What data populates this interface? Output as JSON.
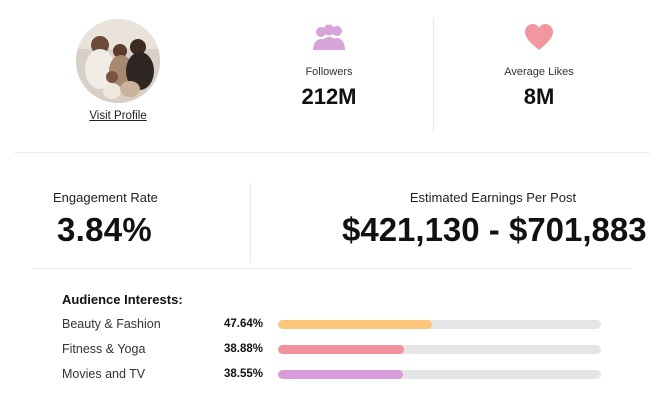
{
  "profile": {
    "visit_label": "Visit Profile"
  },
  "stats": {
    "followers_label": "Followers",
    "followers_value": "212M",
    "followers_icon": "people-icon",
    "followers_color": "#d7a3d9",
    "likes_label": "Average Likes",
    "likes_value": "8M",
    "likes_icon": "heart-icon",
    "likes_color": "#f2979f"
  },
  "metrics": {
    "engagement_label": "Engagement Rate",
    "engagement_value": "3.84%",
    "earnings_label": "Estimated Earnings Per Post",
    "earnings_value": "$421,130 - $701,883"
  },
  "interests": {
    "title": "Audience Interests:",
    "items": [
      {
        "label": "Beauty & Fashion",
        "percent_text": "47.64%",
        "value": 47.64,
        "color": "#fcc77a"
      },
      {
        "label": "Fitness & Yoga",
        "percent_text": "38.88%",
        "value": 38.88,
        "color": "#f1919b"
      },
      {
        "label": "Movies and TV",
        "percent_text": "38.55%",
        "value": 38.55,
        "color": "#d89cd8"
      }
    ],
    "track_color": "#e5e5e5"
  }
}
